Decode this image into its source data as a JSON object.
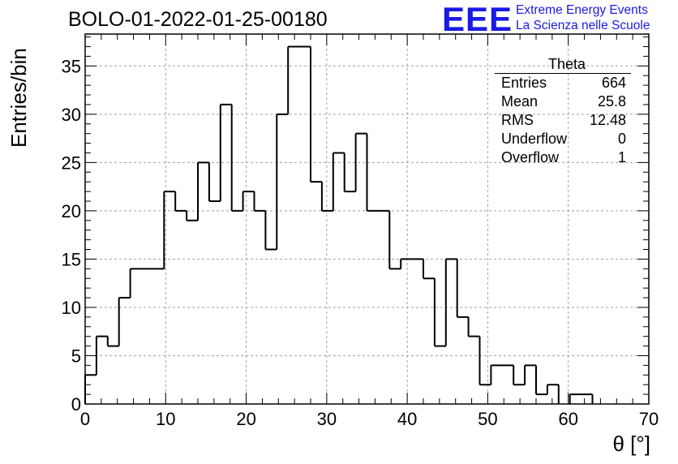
{
  "header": {
    "title": "BOLO-01-2022-01-25-00180",
    "logo_text": "EEE",
    "brand_line1": "Extreme Energy Events",
    "brand_line2": "La Scienza nelle Scuole"
  },
  "stats": {
    "name": "Theta",
    "rows": [
      {
        "label": "Entries",
        "value": "664"
      },
      {
        "label": "Mean",
        "value": "25.8"
      },
      {
        "label": "RMS",
        "value": "12.48"
      },
      {
        "label": "Underflow",
        "value": "0"
      },
      {
        "label": "Overflow",
        "value": "1"
      }
    ]
  },
  "chart_data": {
    "type": "bar",
    "style": "step-histogram",
    "xlabel": "θ [°]",
    "ylabel": "Entries/bin",
    "xlim": [
      0,
      70
    ],
    "ylim": [
      0,
      38.3
    ],
    "xticks": [
      0,
      10,
      20,
      30,
      40,
      50,
      60,
      70
    ],
    "yticks": [
      0,
      5,
      10,
      15,
      20,
      25,
      30,
      35
    ],
    "grid": true,
    "bin_width": 1.4,
    "values": [
      3,
      7,
      6,
      11,
      14,
      14,
      14,
      22,
      20,
      19,
      25,
      21,
      31,
      20,
      22,
      20,
      16,
      30,
      37,
      37,
      23,
      20,
      26,
      22,
      28,
      20,
      20,
      14,
      15,
      15,
      13,
      6,
      15,
      9,
      7,
      2,
      4,
      4,
      2,
      4,
      1,
      2,
      0,
      1,
      1,
      0,
      0,
      0,
      0,
      0
    ],
    "line_color": "#000000",
    "grid_color": "#a0a0a0",
    "logo_color": "#1a1ae6"
  }
}
